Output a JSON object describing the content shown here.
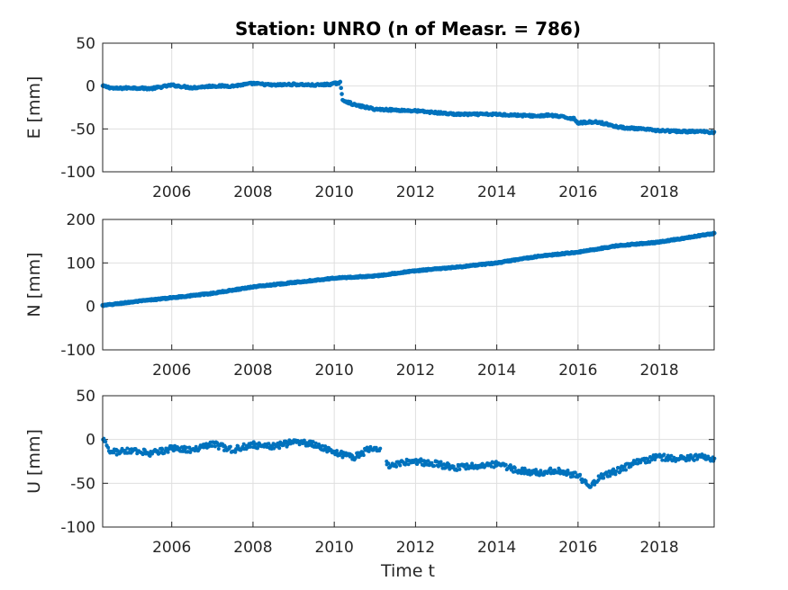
{
  "chart_data": {
    "type": "scatter",
    "title": "Station: UNRO (n of Measr. = 786)",
    "xlabel": "Time t",
    "n_measurements": 786,
    "series_color": "#0072BD",
    "grid": true,
    "x_ticks": [
      2006,
      2008,
      2010,
      2012,
      2014,
      2016,
      2018
    ],
    "x_tick_labels": [
      "2006",
      "2008",
      "2010",
      "2012",
      "2014",
      "2016",
      "2018"
    ],
    "xlim": [
      2004.3,
      2019.35
    ],
    "panels": [
      {
        "ylabel": "E [mm]",
        "ylim": [
          -100,
          50
        ],
        "y_ticks": [
          -100,
          -50,
          0,
          50
        ],
        "y_tick_labels": [
          "-100",
          "-50",
          "0",
          "50"
        ],
        "x": [
          2004.3,
          2004.6,
          2005.0,
          2005.5,
          2006.0,
          2006.5,
          2007.0,
          2007.5,
          2008.0,
          2008.5,
          2009.0,
          2009.5,
          2009.9,
          2010.15,
          2010.2,
          2010.5,
          2011.0,
          2011.5,
          2012.0,
          2012.5,
          2013.0,
          2013.5,
          2014.0,
          2014.5,
          2015.0,
          2015.3,
          2015.6,
          2015.9,
          2016.0,
          2016.3,
          2016.5,
          2017.0,
          2017.5,
          2018.0,
          2018.5,
          2019.0,
          2019.35
        ],
        "y": [
          0,
          -3,
          -2,
          -3,
          1,
          -2,
          0,
          0,
          3,
          1,
          2,
          1,
          2,
          4,
          -16,
          -22,
          -27,
          -28,
          -29,
          -31,
          -33,
          -33,
          -33,
          -34,
          -35,
          -34,
          -36,
          -38,
          -43,
          -42,
          -42,
          -48,
          -50,
          -52,
          -53,
          -53,
          -54
        ]
      },
      {
        "ylabel": "N [mm]",
        "ylim": [
          -100,
          200
        ],
        "y_ticks": [
          -100,
          0,
          100,
          200
        ],
        "y_tick_labels": [
          "-100",
          "0",
          "100",
          "200"
        ],
        "x": [
          2004.3,
          2005.0,
          2006.0,
          2007.0,
          2008.0,
          2009.0,
          2010.0,
          2011.0,
          2012.0,
          2013.0,
          2014.0,
          2015.0,
          2016.0,
          2017.0,
          2018.0,
          2019.35
        ],
        "y": [
          2,
          10,
          20,
          30,
          45,
          55,
          65,
          70,
          82,
          90,
          100,
          115,
          125,
          140,
          148,
          168
        ]
      },
      {
        "ylabel": "U [mm]",
        "ylim": [
          -100,
          50
        ],
        "y_ticks": [
          -100,
          -50,
          0,
          50
        ],
        "y_tick_labels": [
          "-100",
          "-50",
          "0",
          "50"
        ],
        "x": [
          2004.3,
          2004.5,
          2005.0,
          2005.5,
          2006.0,
          2006.5,
          2007.0,
          2007.5,
          2008.0,
          2008.5,
          2009.0,
          2009.5,
          2010.0,
          2010.5,
          2011.0,
          2011.2,
          2011.3,
          2011.5,
          2012.0,
          2012.5,
          2013.0,
          2013.5,
          2014.0,
          2014.5,
          2015.0,
          2015.5,
          2016.0,
          2016.3,
          2016.6,
          2017.0,
          2017.5,
          2018.0,
          2018.5,
          2019.0,
          2019.35
        ],
        "y": [
          0,
          -15,
          -12,
          -16,
          -10,
          -12,
          -5,
          -12,
          -6,
          -8,
          -3,
          -5,
          -15,
          -20,
          -8,
          -15,
          -30,
          -28,
          -25,
          -28,
          -32,
          -30,
          -28,
          -35,
          -38,
          -35,
          -42,
          -52,
          -42,
          -35,
          -25,
          -20,
          -22,
          -20,
          -22
        ]
      }
    ]
  }
}
